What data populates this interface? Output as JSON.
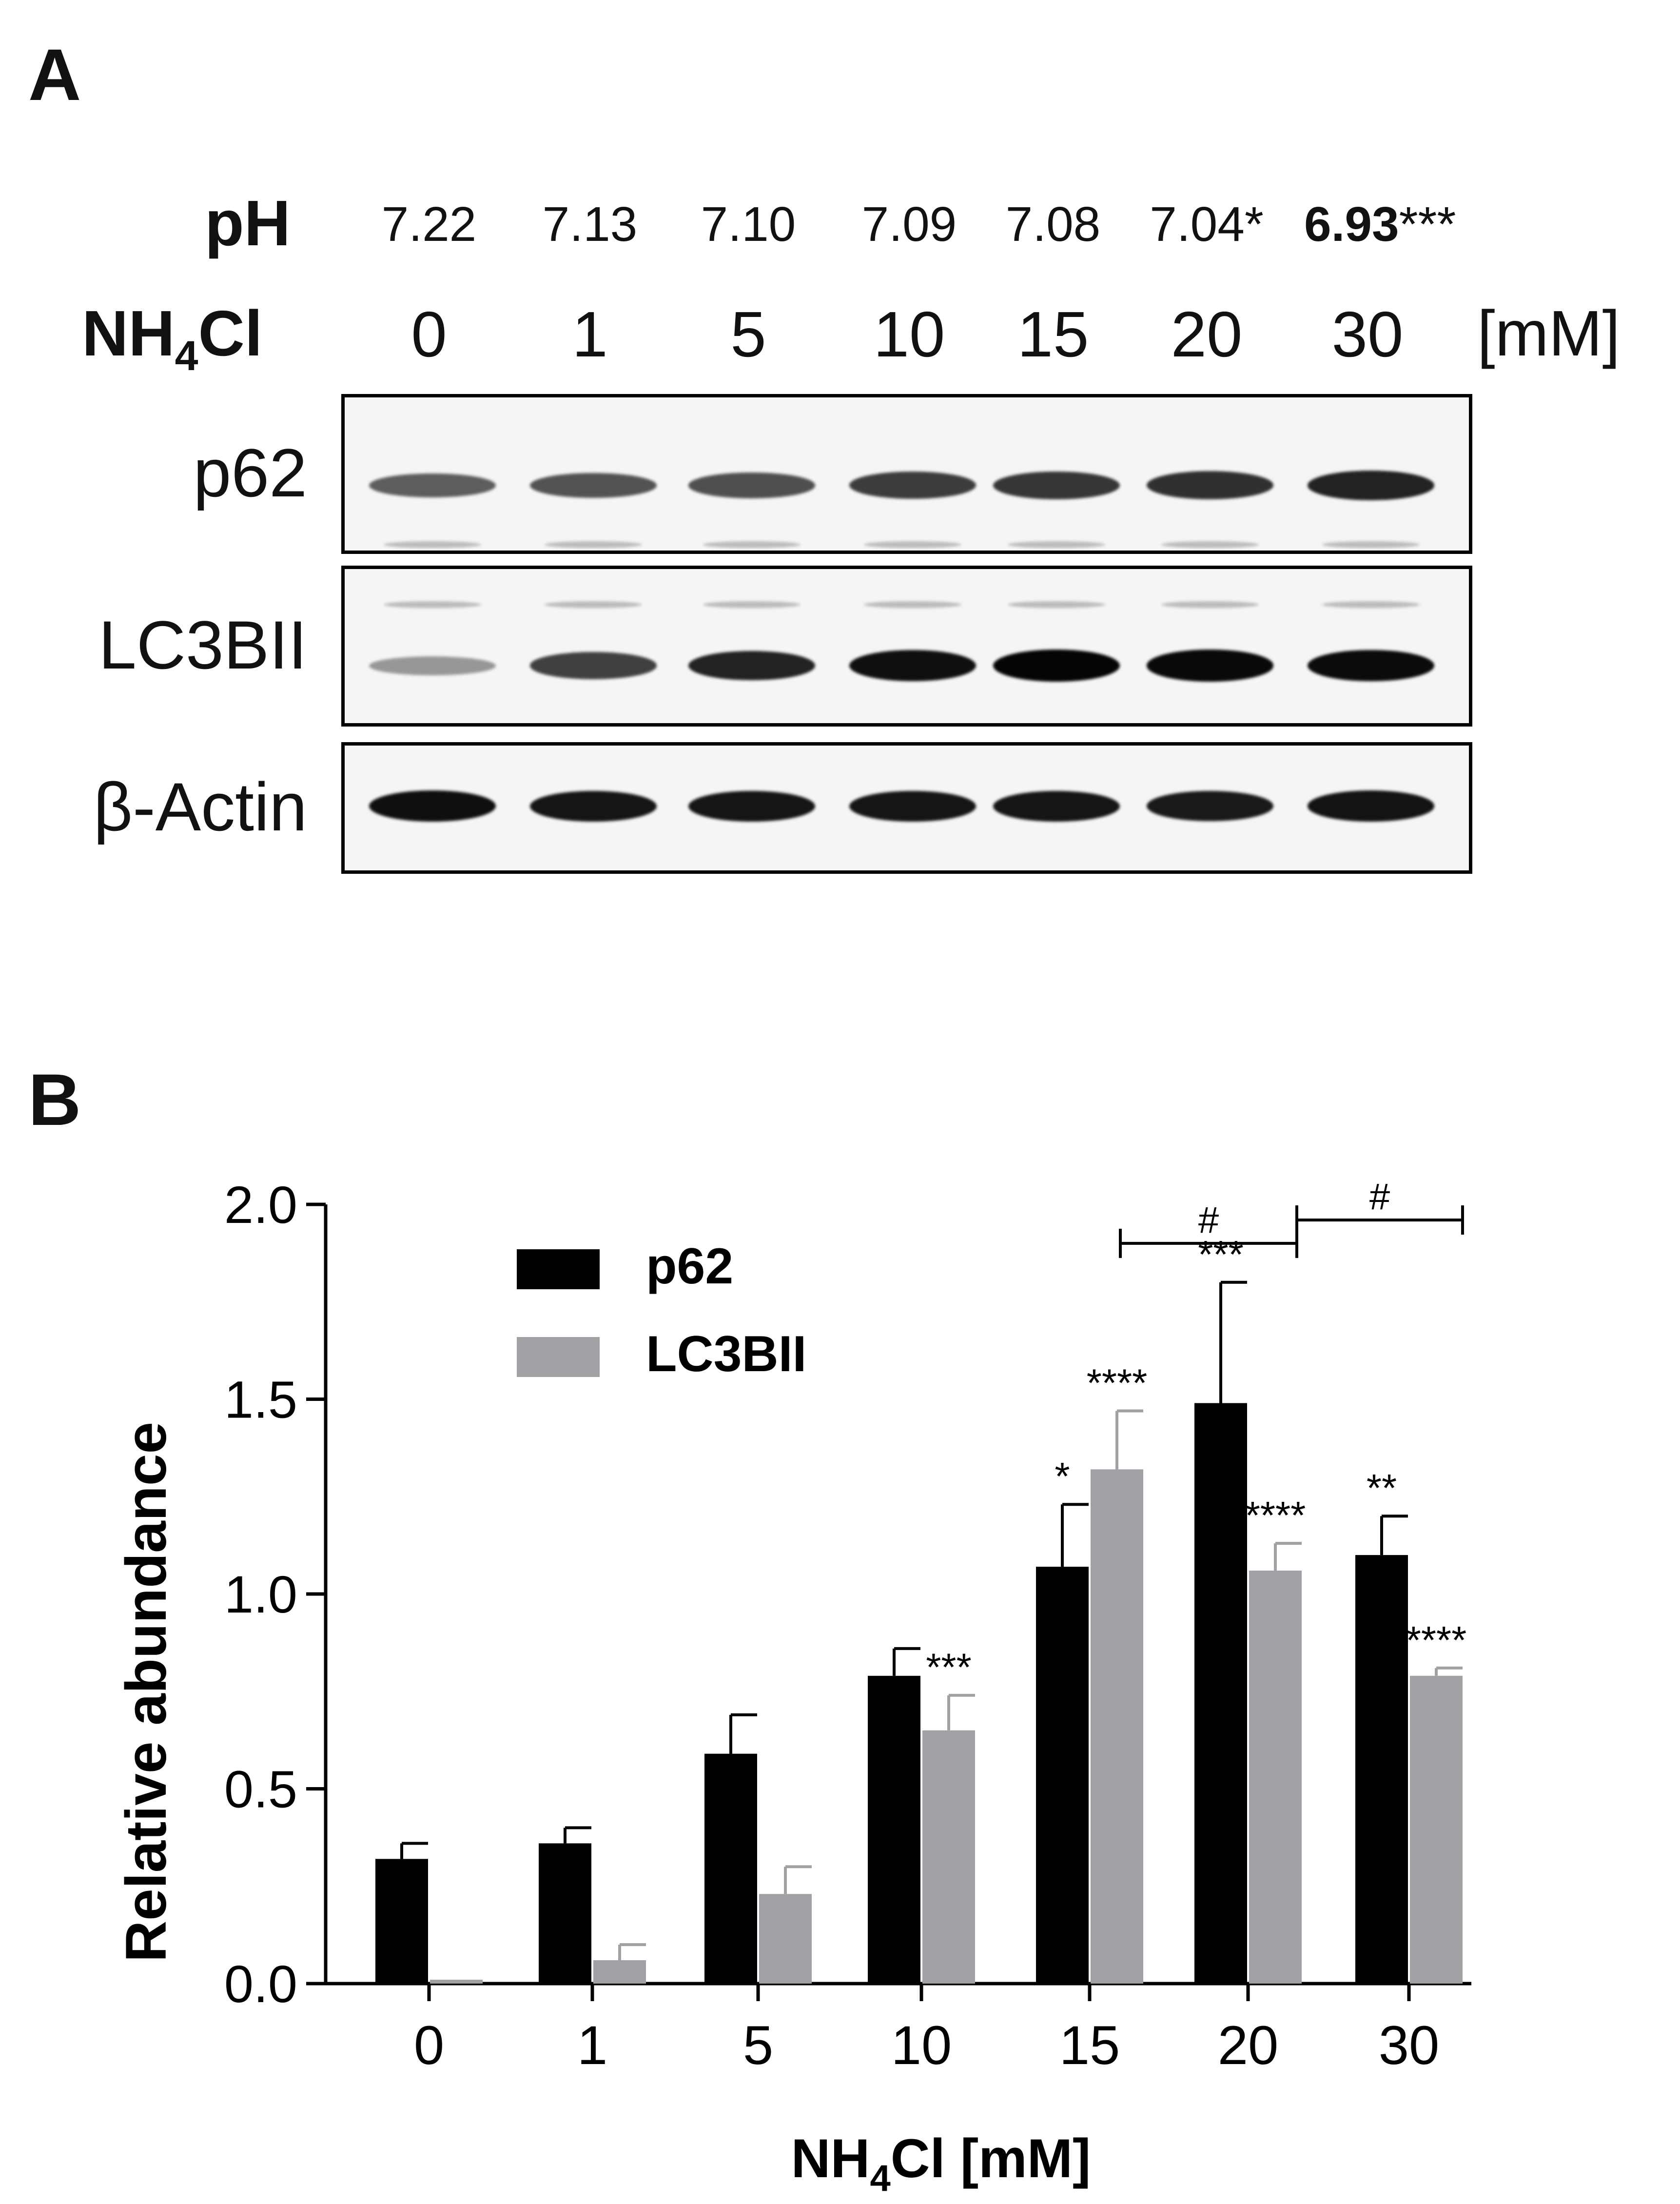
{
  "panel_a": {
    "letter": "A",
    "ph_label": "pH",
    "conc_label_main": "NH",
    "conc_label_sub": "4",
    "conc_label_end": "Cl",
    "unit": "[mM]",
    "ph_values": [
      "7.22",
      "7.13",
      "7.10",
      "7.09",
      "7.08",
      "7.04*",
      "6.93***"
    ],
    "concentrations": [
      "0",
      "1",
      "5",
      "10",
      "15",
      "20",
      "30"
    ],
    "blots": [
      {
        "label": "p62",
        "band_intensity": [
          0.55,
          0.6,
          0.62,
          0.72,
          0.75,
          0.78,
          0.85
        ]
      },
      {
        "label": "LC3BII",
        "band_intensity": [
          0.25,
          0.7,
          0.85,
          0.95,
          1.0,
          0.98,
          0.97
        ]
      },
      {
        "label": "β-Actin",
        "band_intensity": [
          0.95,
          0.92,
          0.92,
          0.92,
          0.92,
          0.9,
          0.93
        ]
      }
    ]
  },
  "panel_b": {
    "letter": "B",
    "colors": {
      "p62": "#000000",
      "LC3BII": "#a1a1a5"
    }
  },
  "chart_data": {
    "type": "bar",
    "title": "",
    "xlabel_main": "NH",
    "xlabel_sub": "4",
    "xlabel_end": "Cl [mM]",
    "ylabel": "Relative abundance",
    "categories": [
      "0",
      "1",
      "5",
      "10",
      "15",
      "20",
      "30"
    ],
    "ylim": [
      0.0,
      2.0
    ],
    "yticks": [
      "0.0",
      "0.5",
      "1.0",
      "1.5",
      "2.0"
    ],
    "series": [
      {
        "name": "p62",
        "values": [
          0.32,
          0.36,
          0.59,
          0.79,
          1.07,
          1.49,
          1.1
        ],
        "errors": [
          0.04,
          0.04,
          0.1,
          0.07,
          0.16,
          0.31,
          0.1
        ],
        "sig": [
          "",
          "",
          "",
          "",
          "*",
          "***",
          "**"
        ]
      },
      {
        "name": "LC3BII",
        "values": [
          0.01,
          0.06,
          0.23,
          0.65,
          1.32,
          1.06,
          0.79
        ],
        "errors": [
          0.0,
          0.04,
          0.07,
          0.09,
          0.15,
          0.07,
          0.02
        ],
        "sig": [
          "",
          "",
          "",
          "***",
          "****",
          "****",
          "****"
        ]
      }
    ],
    "brackets": [
      {
        "from": "15",
        "to": "20",
        "label": "#"
      },
      {
        "from": "20",
        "to": "30",
        "label": "#"
      }
    ],
    "legend": "top-left"
  }
}
